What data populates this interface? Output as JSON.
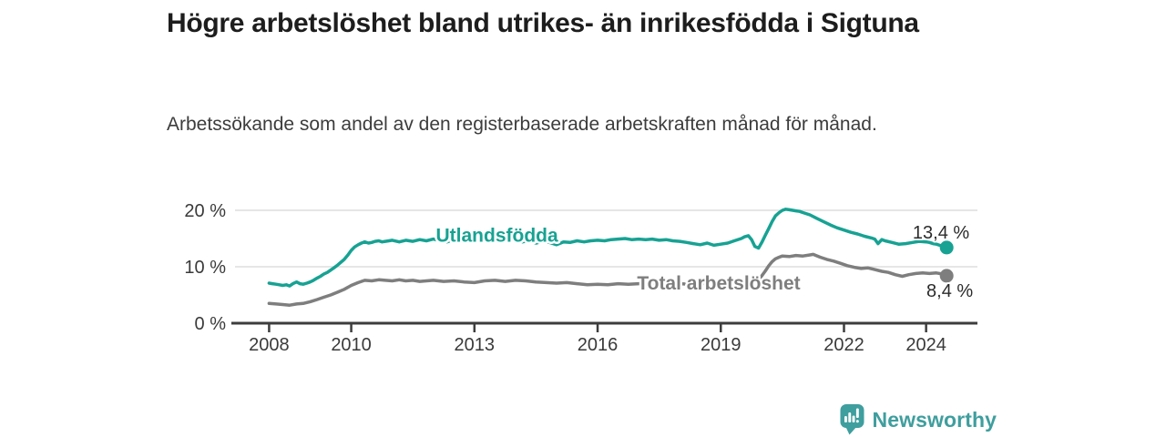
{
  "header": {
    "title": "Högre arbetslöshet bland utrikes- än inrikesfödda i Sigtuna",
    "subtitle": "Arbetssökande som andel av den registerbaserade arbetskraften månad för månad."
  },
  "branding": {
    "logo_icon": "newsworthy-barchart-pin-icon",
    "logo_text": "Newsworthy",
    "logo_color": "#3f9e9e"
  },
  "colors": {
    "series_foreign_born": "#17a293",
    "series_total": "#7e7e7e",
    "axis": "#3d3d3d",
    "grid": "#dedede",
    "tick_text": "#3a3a3a",
    "value_text": "#2b2b2b"
  },
  "chart_data": {
    "type": "line",
    "title": "Högre arbetslöshet bland utrikes- än inrikesfödda i Sigtuna",
    "subtitle": "Arbetssökande som andel av den registerbaserade arbetskraften månad för månad.",
    "xlabel": "",
    "ylabel": "",
    "unit": "%",
    "x_unit": "year (monthly series)",
    "xlim": [
      2007.17,
      2025.25
    ],
    "ylim": [
      0,
      21.5
    ],
    "grid": "horizontal",
    "legend_position": "inline-labels",
    "x_ticks": [
      {
        "value": 2008,
        "label": "2008"
      },
      {
        "value": 2010,
        "label": "2010"
      },
      {
        "value": 2013,
        "label": "2013"
      },
      {
        "value": 2016,
        "label": "2016"
      },
      {
        "value": 2019,
        "label": "2019"
      },
      {
        "value": 2022,
        "label": "2022"
      },
      {
        "value": 2024,
        "label": "2024"
      }
    ],
    "y_ticks": [
      {
        "value": 0,
        "label": "0 %"
      },
      {
        "value": 10,
        "label": "10 %"
      },
      {
        "value": 20,
        "label": "20 %"
      }
    ],
    "series": [
      {
        "name": "Utlandsfödda",
        "color": "#17a293",
        "end_label": "13,4 %",
        "end_value": 13.4,
        "label_anchor": {
          "year": 2013.55,
          "value": 15.55
        },
        "points": [
          [
            2008.0,
            7.1
          ],
          [
            2008.08,
            7.0
          ],
          [
            2008.17,
            6.9
          ],
          [
            2008.25,
            6.8
          ],
          [
            2008.33,
            6.7
          ],
          [
            2008.42,
            6.8
          ],
          [
            2008.5,
            6.6
          ],
          [
            2008.58,
            7.0
          ],
          [
            2008.67,
            7.3
          ],
          [
            2008.75,
            7.0
          ],
          [
            2008.83,
            6.9
          ],
          [
            2008.92,
            7.1
          ],
          [
            2009.0,
            7.3
          ],
          [
            2009.08,
            7.6
          ],
          [
            2009.17,
            8.0
          ],
          [
            2009.25,
            8.3
          ],
          [
            2009.33,
            8.7
          ],
          [
            2009.42,
            9.0
          ],
          [
            2009.5,
            9.4
          ],
          [
            2009.58,
            9.8
          ],
          [
            2009.67,
            10.3
          ],
          [
            2009.75,
            10.8
          ],
          [
            2009.83,
            11.3
          ],
          [
            2009.92,
            12.1
          ],
          [
            2010.0,
            12.9
          ],
          [
            2010.08,
            13.5
          ],
          [
            2010.17,
            13.9
          ],
          [
            2010.25,
            14.2
          ],
          [
            2010.33,
            14.4
          ],
          [
            2010.42,
            14.2
          ],
          [
            2010.5,
            14.3
          ],
          [
            2010.58,
            14.5
          ],
          [
            2010.67,
            14.6
          ],
          [
            2010.75,
            14.4
          ],
          [
            2010.83,
            14.5
          ],
          [
            2010.92,
            14.6
          ],
          [
            2011.0,
            14.7
          ],
          [
            2011.17,
            14.4
          ],
          [
            2011.33,
            14.7
          ],
          [
            2011.5,
            14.5
          ],
          [
            2011.67,
            14.8
          ],
          [
            2011.83,
            14.6
          ],
          [
            2012.0,
            14.9
          ],
          [
            2012.17,
            14.6
          ],
          [
            2012.33,
            14.4
          ],
          [
            2012.5,
            14.8
          ],
          [
            2012.67,
            15.0
          ],
          [
            2012.83,
            14.6
          ],
          [
            2013.0,
            14.9
          ],
          [
            2013.17,
            14.6
          ],
          [
            2013.33,
            15.0
          ],
          [
            2013.5,
            14.9
          ],
          [
            2013.67,
            14.6
          ],
          [
            2013.83,
            14.8
          ],
          [
            2014.0,
            14.9
          ],
          [
            2014.17,
            14.4
          ],
          [
            2014.33,
            14.6
          ],
          [
            2014.5,
            14.2
          ],
          [
            2014.67,
            14.5
          ],
          [
            2014.83,
            14.3
          ],
          [
            2015.0,
            13.9
          ],
          [
            2015.17,
            14.4
          ],
          [
            2015.33,
            14.3
          ],
          [
            2015.5,
            14.6
          ],
          [
            2015.67,
            14.4
          ],
          [
            2015.83,
            14.6
          ],
          [
            2016.0,
            14.7
          ],
          [
            2016.17,
            14.6
          ],
          [
            2016.33,
            14.8
          ],
          [
            2016.5,
            14.9
          ],
          [
            2016.67,
            15.0
          ],
          [
            2016.83,
            14.8
          ],
          [
            2017.0,
            14.9
          ],
          [
            2017.17,
            14.8
          ],
          [
            2017.33,
            14.9
          ],
          [
            2017.5,
            14.7
          ],
          [
            2017.67,
            14.8
          ],
          [
            2017.83,
            14.6
          ],
          [
            2018.0,
            14.5
          ],
          [
            2018.17,
            14.3
          ],
          [
            2018.33,
            14.1
          ],
          [
            2018.5,
            13.9
          ],
          [
            2018.67,
            14.2
          ],
          [
            2018.83,
            13.8
          ],
          [
            2019.0,
            14.0
          ],
          [
            2019.17,
            14.2
          ],
          [
            2019.33,
            14.6
          ],
          [
            2019.5,
            15.0
          ],
          [
            2019.58,
            15.3
          ],
          [
            2019.67,
            15.5
          ],
          [
            2019.75,
            14.8
          ],
          [
            2019.83,
            13.6
          ],
          [
            2019.92,
            13.3
          ],
          [
            2020.0,
            14.3
          ],
          [
            2020.08,
            15.5
          ],
          [
            2020.17,
            16.8
          ],
          [
            2020.25,
            18.0
          ],
          [
            2020.33,
            19.0
          ],
          [
            2020.42,
            19.6
          ],
          [
            2020.5,
            20.0
          ],
          [
            2020.58,
            20.2
          ],
          [
            2020.67,
            20.1
          ],
          [
            2020.75,
            20.0
          ],
          [
            2020.83,
            19.9
          ],
          [
            2020.92,
            19.8
          ],
          [
            2021.0,
            19.6
          ],
          [
            2021.17,
            19.2
          ],
          [
            2021.33,
            18.6
          ],
          [
            2021.5,
            18.0
          ],
          [
            2021.67,
            17.4
          ],
          [
            2021.83,
            16.9
          ],
          [
            2022.0,
            16.5
          ],
          [
            2022.17,
            16.1
          ],
          [
            2022.33,
            15.8
          ],
          [
            2022.5,
            15.4
          ],
          [
            2022.67,
            15.1
          ],
          [
            2022.75,
            14.9
          ],
          [
            2022.83,
            14.1
          ],
          [
            2022.92,
            14.8
          ],
          [
            2023.0,
            14.6
          ],
          [
            2023.17,
            14.3
          ],
          [
            2023.33,
            14.0
          ],
          [
            2023.5,
            14.1
          ],
          [
            2023.67,
            14.3
          ],
          [
            2023.83,
            14.5
          ],
          [
            2024.0,
            14.4
          ],
          [
            2024.08,
            14.3
          ],
          [
            2024.17,
            14.1
          ],
          [
            2024.25,
            14.0
          ],
          [
            2024.33,
            13.8
          ],
          [
            2024.42,
            13.6
          ],
          [
            2024.5,
            13.4
          ]
        ]
      },
      {
        "name": "Total arbetslöshet",
        "color": "#7e7e7e",
        "end_label": "8,4 %",
        "end_value": 8.4,
        "label_anchor": {
          "year": 2018.95,
          "value": 7.1
        },
        "points": [
          [
            2008.0,
            3.5
          ],
          [
            2008.17,
            3.4
          ],
          [
            2008.33,
            3.3
          ],
          [
            2008.5,
            3.2
          ],
          [
            2008.67,
            3.4
          ],
          [
            2008.83,
            3.5
          ],
          [
            2009.0,
            3.8
          ],
          [
            2009.17,
            4.2
          ],
          [
            2009.33,
            4.6
          ],
          [
            2009.5,
            5.0
          ],
          [
            2009.67,
            5.5
          ],
          [
            2009.83,
            6.0
          ],
          [
            2010.0,
            6.7
          ],
          [
            2010.17,
            7.2
          ],
          [
            2010.33,
            7.6
          ],
          [
            2010.5,
            7.5
          ],
          [
            2010.67,
            7.7
          ],
          [
            2010.83,
            7.6
          ],
          [
            2011.0,
            7.5
          ],
          [
            2011.17,
            7.7
          ],
          [
            2011.33,
            7.5
          ],
          [
            2011.5,
            7.6
          ],
          [
            2011.67,
            7.4
          ],
          [
            2011.83,
            7.5
          ],
          [
            2012.0,
            7.6
          ],
          [
            2012.25,
            7.4
          ],
          [
            2012.5,
            7.5
          ],
          [
            2012.75,
            7.3
          ],
          [
            2013.0,
            7.2
          ],
          [
            2013.25,
            7.5
          ],
          [
            2013.5,
            7.6
          ],
          [
            2013.75,
            7.4
          ],
          [
            2014.0,
            7.6
          ],
          [
            2014.25,
            7.5
          ],
          [
            2014.5,
            7.3
          ],
          [
            2014.75,
            7.2
          ],
          [
            2015.0,
            7.1
          ],
          [
            2015.25,
            7.2
          ],
          [
            2015.5,
            7.0
          ],
          [
            2015.75,
            6.8
          ],
          [
            2016.0,
            6.9
          ],
          [
            2016.25,
            6.8
          ],
          [
            2016.5,
            7.0
          ],
          [
            2016.75,
            6.9
          ],
          [
            2017.0,
            7.0
          ],
          [
            2017.25,
            7.1
          ],
          [
            2017.5,
            7.0
          ],
          [
            2017.75,
            6.9
          ],
          [
            2018.0,
            7.0
          ],
          [
            2018.25,
            6.9
          ],
          [
            2018.5,
            7.0
          ],
          [
            2018.75,
            7.1
          ],
          [
            2019.0,
            7.1
          ],
          [
            2019.25,
            7.2
          ],
          [
            2019.5,
            7.3
          ],
          [
            2019.75,
            7.4
          ],
          [
            2019.92,
            7.6
          ],
          [
            2020.08,
            9.2
          ],
          [
            2020.17,
            10.2
          ],
          [
            2020.25,
            10.9
          ],
          [
            2020.33,
            11.4
          ],
          [
            2020.42,
            11.7
          ],
          [
            2020.5,
            11.9
          ],
          [
            2020.67,
            11.8
          ],
          [
            2020.83,
            12.0
          ],
          [
            2021.0,
            11.9
          ],
          [
            2021.17,
            12.1
          ],
          [
            2021.25,
            12.2
          ],
          [
            2021.42,
            11.7
          ],
          [
            2021.58,
            11.3
          ],
          [
            2021.75,
            11.0
          ],
          [
            2021.92,
            10.6
          ],
          [
            2022.08,
            10.2
          ],
          [
            2022.25,
            9.9
          ],
          [
            2022.42,
            9.7
          ],
          [
            2022.58,
            9.8
          ],
          [
            2022.75,
            9.5
          ],
          [
            2022.92,
            9.2
          ],
          [
            2023.08,
            9.0
          ],
          [
            2023.25,
            8.6
          ],
          [
            2023.42,
            8.3
          ],
          [
            2023.58,
            8.6
          ],
          [
            2023.75,
            8.8
          ],
          [
            2023.92,
            8.9
          ],
          [
            2024.08,
            8.8
          ],
          [
            2024.25,
            8.9
          ],
          [
            2024.42,
            8.7
          ],
          [
            2024.5,
            8.4
          ]
        ]
      }
    ]
  }
}
